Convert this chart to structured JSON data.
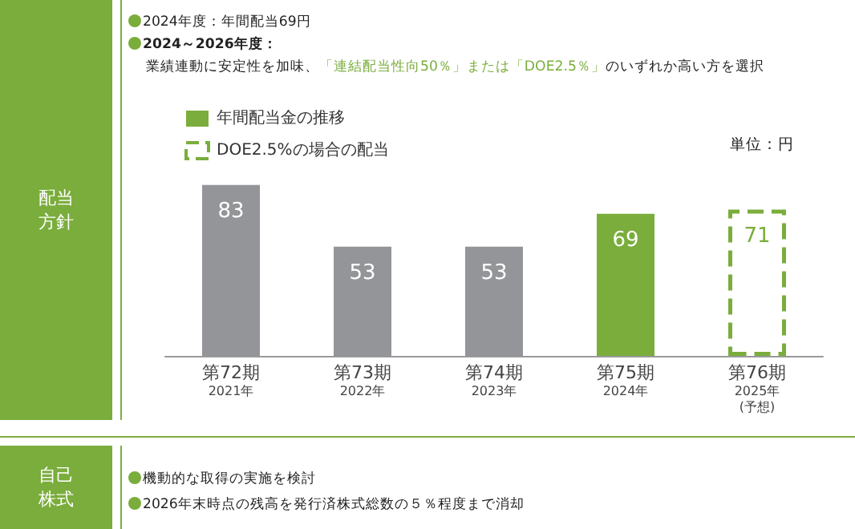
{
  "chart_data": {
    "type": "bar",
    "annotations": [
      "配当方針",
      "2024年度：年間配当69円",
      "2024～2026年度：",
      "業績連動に安定性を加味、「連結配当性向50％」または「DOE2.5％」のいずれか高い方を選択",
      "単位：円",
      "自己株式",
      "機動的な取得の実施を検討",
      "2026年末時点の残高を発行済株式総数の５％程度まで消却"
    ],
    "categories": [
      "第72期\n2021年",
      "第73期\n2022年",
      "第74期\n2023年",
      "第75期\n2024年",
      "第76期\n2025年\n(予想)"
    ],
    "series": [
      {
        "name": "年間配当金の推移",
        "color": "#7aad3c",
        "colors": [
          "#939598",
          "#939598",
          "#939598",
          "#7aad3c",
          null
        ],
        "values": [
          83,
          53,
          53,
          69,
          null
        ]
      },
      {
        "name": "DOE2.5%の場合の配当",
        "color": "#7aad3c",
        "line_style": "dashed",
        "values": [
          null,
          null,
          null,
          null,
          71
        ]
      }
    ],
    "data_labels": true,
    "legend": "top left"
  }
}
